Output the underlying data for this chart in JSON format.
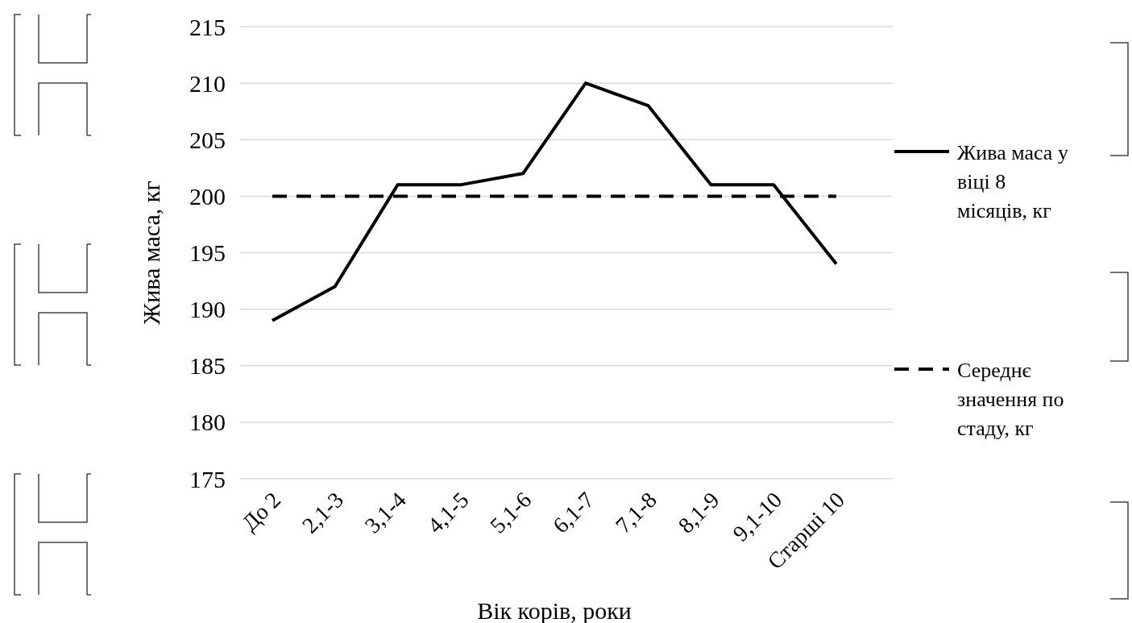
{
  "chart_data": {
    "type": "line",
    "xlabel": "Вік корів, роки",
    "ylabel": "Жива маса, кг",
    "categories": [
      "До 2",
      "2,1-3",
      "3,1-4",
      "4,1-5",
      "5,1-6",
      "6,1-7",
      "7,1-8",
      "8,1-9",
      "9,1-10",
      "Старші 10"
    ],
    "series": [
      {
        "name": "Жива маса у віці 8 місяців, кг",
        "color": "#000000",
        "line_style": "solid",
        "values": [
          189,
          192,
          201,
          201,
          202,
          210,
          208,
          201,
          201,
          194
        ]
      },
      {
        "name": "Середнє значення по стаду, кг",
        "color": "#000000",
        "line_style": "dashed",
        "values": [
          200,
          200,
          200,
          200,
          200,
          200,
          200,
          200,
          200,
          200
        ]
      }
    ],
    "ylim": [
      175,
      215
    ],
    "yticks": [
      175,
      180,
      185,
      190,
      195,
      200,
      205,
      210,
      215
    ],
    "grid": "y",
    "legend": "right",
    "marker": "none"
  }
}
